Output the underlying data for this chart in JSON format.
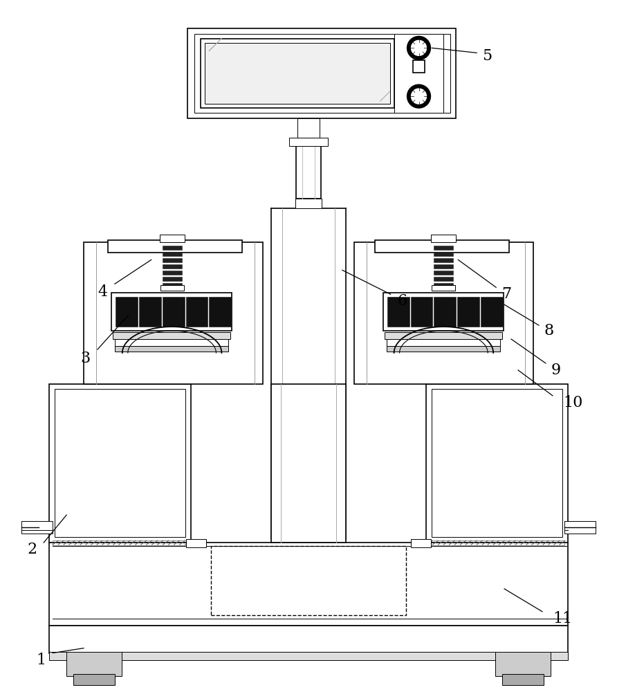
{
  "bg_color": "#ffffff",
  "lc": "#000000",
  "figsize": [
    8.92,
    10.0
  ],
  "dpi": 100,
  "gray_fill": "#e8e8e8",
  "dark_fill": "#333333",
  "hatch_color": "#888888"
}
